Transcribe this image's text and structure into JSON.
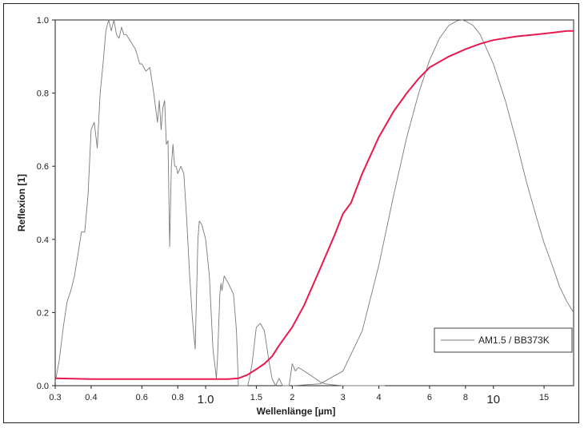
{
  "chart_data": {
    "type": "line",
    "title": "",
    "xlabel": "Wellenlänge [µm]",
    "ylabel": "Reflexion [1]",
    "xscale": "log",
    "xlim": [
      0.3,
      19
    ],
    "ylim": [
      0,
      1.0
    ],
    "grid": false,
    "legend_position": "bottom-right",
    "y_ticks": [
      "0.0",
      "0.2",
      "0.4",
      "0.6",
      "0.8",
      "1.0"
    ],
    "x_ticks": [
      {
        "value": 0.3,
        "label": "0.3",
        "style": "small"
      },
      {
        "value": 0.4,
        "label": "0.4",
        "style": "small"
      },
      {
        "value": 0.6,
        "label": "0.6",
        "style": "small"
      },
      {
        "value": 0.8,
        "label": "0.8",
        "style": "small"
      },
      {
        "value": 1.0,
        "label": "1.0",
        "style": "large"
      },
      {
        "value": 1.5,
        "label": "1.5",
        "style": "small"
      },
      {
        "value": 2,
        "label": "2",
        "style": "small"
      },
      {
        "value": 3,
        "label": "3",
        "style": "small"
      },
      {
        "value": 4,
        "label": "4",
        "style": "small"
      },
      {
        "value": 6,
        "label": "6",
        "style": "small"
      },
      {
        "value": 8,
        "label": "8",
        "style": "small"
      },
      {
        "value": 10,
        "label": "10",
        "style": "large"
      },
      {
        "value": 15,
        "label": "15",
        "style": "small"
      }
    ],
    "series": [
      {
        "name": "AM1.5 / BB373K",
        "color": "#7a7a7a",
        "description_of_role": "solar spectrum",
        "x": [
          0.3,
          0.31,
          0.32,
          0.33,
          0.34,
          0.35,
          0.36,
          0.37,
          0.38,
          0.39,
          0.4,
          0.41,
          0.42,
          0.43,
          0.44,
          0.45,
          0.46,
          0.47,
          0.48,
          0.49,
          0.5,
          0.51,
          0.52,
          0.53,
          0.54,
          0.55,
          0.56,
          0.57,
          0.58,
          0.59,
          0.6,
          0.62,
          0.64,
          0.66,
          0.68,
          0.69,
          0.7,
          0.71,
          0.72,
          0.73,
          0.74,
          0.75,
          0.76,
          0.77,
          0.78,
          0.79,
          0.8,
          0.82,
          0.84,
          0.86,
          0.88,
          0.9,
          0.92,
          0.93,
          0.94,
          0.95,
          0.97,
          1.0,
          1.03,
          1.06,
          1.09,
          1.1,
          1.12,
          1.13,
          1.14,
          1.16,
          1.2,
          1.25,
          1.28,
          1.3,
          1.34,
          1.36,
          1.38,
          1.4,
          1.42,
          1.45,
          1.5,
          1.55,
          1.6,
          1.65,
          1.7,
          1.75,
          1.8,
          1.85,
          1.9,
          1.95,
          2.0,
          2.05,
          2.1,
          2.2,
          2.3,
          2.4,
          2.5,
          2.6,
          2.8,
          3.0,
          3.5,
          4.0,
          4.2
        ],
        "y": [
          0.01,
          0.07,
          0.16,
          0.23,
          0.26,
          0.3,
          0.36,
          0.42,
          0.42,
          0.52,
          0.7,
          0.72,
          0.65,
          0.8,
          0.88,
          0.97,
          1.0,
          0.97,
          1.0,
          0.96,
          0.95,
          0.98,
          0.96,
          0.96,
          0.95,
          0.94,
          0.93,
          0.92,
          0.9,
          0.88,
          0.88,
          0.86,
          0.87,
          0.8,
          0.72,
          0.78,
          0.7,
          0.76,
          0.78,
          0.66,
          0.67,
          0.38,
          0.6,
          0.66,
          0.6,
          0.6,
          0.58,
          0.6,
          0.58,
          0.45,
          0.3,
          0.18,
          0.1,
          0.25,
          0.4,
          0.45,
          0.44,
          0.4,
          0.3,
          0.1,
          0.02,
          0.08,
          0.25,
          0.28,
          0.26,
          0.3,
          0.28,
          0.25,
          0.15,
          0.0,
          0.0,
          0.0,
          0.0,
          0.0,
          0.02,
          0.06,
          0.16,
          0.17,
          0.15,
          0.08,
          0.02,
          0.0,
          0.02,
          0.0,
          0.0,
          0.0,
          0.06,
          0.04,
          0.05,
          0.04,
          0.03,
          0.02,
          0.01,
          0.005,
          0.002,
          0.0,
          0.0,
          0.0,
          0.0
        ]
      },
      {
        "name": "",
        "color": "#7a7a7a",
        "description_of_role": "blackbody 373K",
        "x": [
          2.0,
          2.5,
          3.0,
          3.5,
          4.0,
          4.5,
          5.0,
          5.5,
          6.0,
          6.5,
          7.0,
          7.5,
          7.8,
          8.0,
          8.5,
          9.0,
          10.0,
          11.0,
          12.0,
          13.0,
          14.0,
          15.0,
          16.0,
          17.0,
          18.0,
          19.0
        ],
        "y": [
          0.0,
          0.005,
          0.04,
          0.15,
          0.33,
          0.52,
          0.68,
          0.8,
          0.89,
          0.95,
          0.985,
          0.998,
          1.0,
          0.997,
          0.985,
          0.96,
          0.88,
          0.78,
          0.67,
          0.56,
          0.47,
          0.39,
          0.33,
          0.27,
          0.23,
          0.2
        ]
      },
      {
        "name": "",
        "color": "#e8194f",
        "description_of_role": "reflection",
        "x": [
          0.3,
          0.4,
          0.5,
          0.6,
          0.8,
          1.0,
          1.1,
          1.2,
          1.3,
          1.4,
          1.5,
          1.6,
          1.7,
          1.8,
          2.0,
          2.2,
          2.5,
          2.8,
          3.0,
          3.2,
          3.5,
          4.0,
          4.5,
          5.0,
          5.5,
          6.0,
          7.0,
          8.0,
          9.0,
          10.0,
          12.0,
          14.0,
          16.0,
          18.0,
          19.0
        ],
        "y": [
          0.02,
          0.018,
          0.018,
          0.018,
          0.018,
          0.018,
          0.018,
          0.018,
          0.02,
          0.03,
          0.045,
          0.06,
          0.08,
          0.11,
          0.16,
          0.22,
          0.32,
          0.41,
          0.47,
          0.5,
          0.58,
          0.68,
          0.75,
          0.8,
          0.84,
          0.87,
          0.9,
          0.92,
          0.935,
          0.945,
          0.955,
          0.96,
          0.965,
          0.97,
          0.97
        ]
      }
    ],
    "legend": {
      "entries": [
        {
          "label": "AM1.5 / BB373K",
          "color": "#7a7a7a"
        }
      ]
    }
  }
}
